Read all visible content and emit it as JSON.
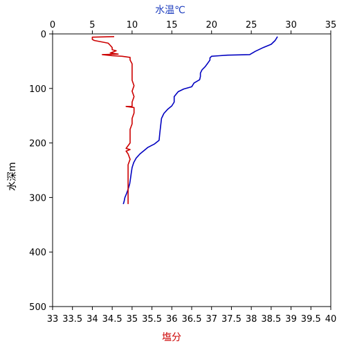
{
  "chart_data": {
    "type": "line",
    "y_axis": {
      "label": "水深m",
      "ticks": [
        0,
        100,
        200,
        300,
        400,
        500
      ],
      "range": [
        0,
        500
      ],
      "reversed": true
    },
    "top_axis": {
      "label": "水温℃",
      "ticks": [
        0,
        5,
        10,
        15,
        20,
        25,
        30,
        35
      ],
      "range": [
        0,
        35
      ],
      "color": "#1f3fbf"
    },
    "bottom_axis": {
      "label": "塩分",
      "ticks": [
        "33",
        "33.5",
        "34",
        "34.5",
        "35",
        "35.5",
        "36",
        "36.5",
        "37",
        "37.5",
        "38",
        "38.5",
        "39",
        "39.5",
        "40"
      ],
      "range": [
        33,
        40
      ],
      "color": "#cc0000"
    },
    "series": [
      {
        "axis": "top",
        "color": "#0000c0",
        "points": [
          [
            28.3,
            5
          ],
          [
            28.0,
            12
          ],
          [
            27.5,
            19
          ],
          [
            26.5,
            25
          ],
          [
            25.5,
            32
          ],
          [
            24.8,
            38
          ],
          [
            22.0,
            39
          ],
          [
            21.0,
            40
          ],
          [
            20.0,
            41
          ],
          [
            19.8,
            44
          ],
          [
            19.8,
            48
          ],
          [
            19.5,
            54
          ],
          [
            19.2,
            60
          ],
          [
            18.8,
            66
          ],
          [
            18.6,
            72
          ],
          [
            18.6,
            78
          ],
          [
            18.5,
            84
          ],
          [
            17.8,
            90
          ],
          [
            17.5,
            97
          ],
          [
            16.5,
            101
          ],
          [
            15.8,
            106
          ],
          [
            15.3,
            115
          ],
          [
            15.3,
            125
          ],
          [
            15.0,
            132
          ],
          [
            14.5,
            138
          ],
          [
            14.0,
            146
          ],
          [
            13.7,
            155
          ],
          [
            13.6,
            168
          ],
          [
            13.5,
            180
          ],
          [
            13.4,
            195
          ],
          [
            12.8,
            202
          ],
          [
            12.0,
            208
          ],
          [
            11.5,
            214
          ],
          [
            11.0,
            220
          ],
          [
            10.5,
            228
          ],
          [
            10.2,
            236
          ],
          [
            10.0,
            245
          ],
          [
            9.9,
            255
          ],
          [
            9.8,
            265
          ],
          [
            9.7,
            275
          ],
          [
            9.5,
            285
          ],
          [
            9.3,
            293
          ],
          [
            9.1,
            300
          ],
          [
            9.0,
            307
          ],
          [
            8.9,
            312
          ]
        ]
      },
      {
        "axis": "bottom",
        "color": "#cc0000",
        "points": [
          [
            34.55,
            5
          ],
          [
            34.0,
            6
          ],
          [
            34.0,
            10
          ],
          [
            34.05,
            12
          ],
          [
            34.4,
            17
          ],
          [
            34.45,
            21
          ],
          [
            34.5,
            25
          ],
          [
            34.5,
            29
          ],
          [
            34.6,
            31
          ],
          [
            34.45,
            35
          ],
          [
            34.65,
            37
          ],
          [
            34.25,
            38
          ],
          [
            34.5,
            40
          ],
          [
            34.75,
            41
          ],
          [
            34.95,
            43
          ],
          [
            34.95,
            48
          ],
          [
            35.0,
            55
          ],
          [
            35.0,
            65
          ],
          [
            35.0,
            75
          ],
          [
            35.0,
            85
          ],
          [
            35.05,
            95
          ],
          [
            35.0,
            105
          ],
          [
            35.05,
            115
          ],
          [
            35.0,
            125
          ],
          [
            35.0,
            133
          ],
          [
            34.85,
            133
          ],
          [
            35.05,
            135
          ],
          [
            35.05,
            145
          ],
          [
            35.0,
            155
          ],
          [
            35.0,
            165
          ],
          [
            34.95,
            175
          ],
          [
            34.95,
            185
          ],
          [
            34.95,
            195
          ],
          [
            34.95,
            200
          ],
          [
            34.9,
            205
          ],
          [
            34.85,
            210
          ],
          [
            34.95,
            212
          ],
          [
            34.85,
            215
          ],
          [
            34.9,
            220
          ],
          [
            34.95,
            230
          ],
          [
            34.9,
            240
          ],
          [
            34.9,
            250
          ],
          [
            34.9,
            260
          ],
          [
            34.9,
            270
          ],
          [
            34.9,
            280
          ],
          [
            34.9,
            290
          ],
          [
            34.9,
            300
          ],
          [
            34.9,
            312
          ]
        ]
      }
    ]
  }
}
